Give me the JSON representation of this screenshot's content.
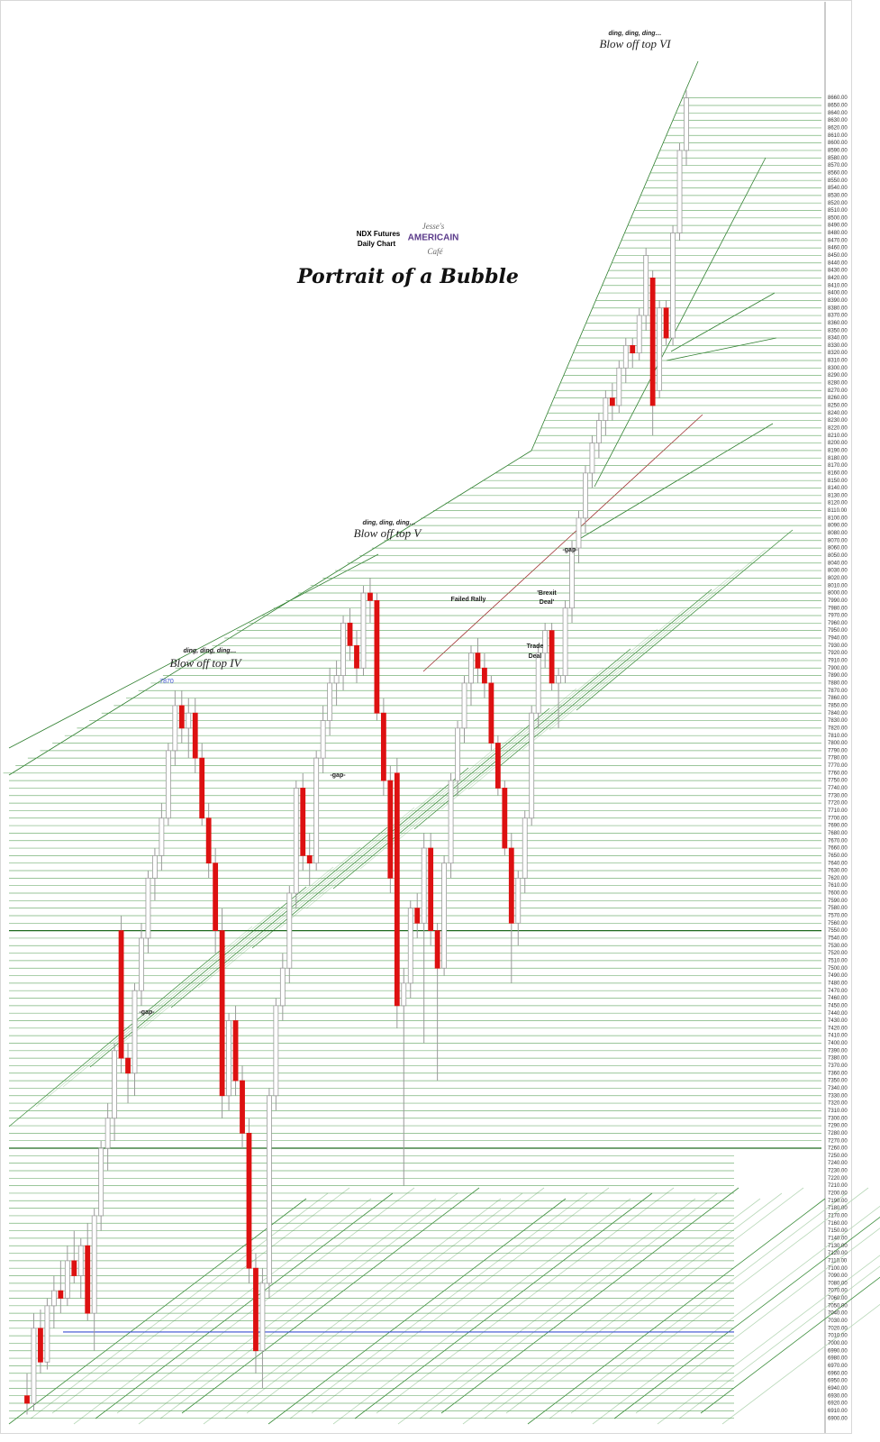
{
  "chart_data": {
    "type": "candlestick",
    "title": "Portrait of a Bubble",
    "subtitle": [
      "NDX  Futures",
      "Daily Chart"
    ],
    "logo": [
      "Jesse's",
      "AMERICAIN",
      "Café"
    ],
    "annotations": [
      {
        "text": "ding,  ding,  ding…"
      },
      {
        "text": "Blow off top IV"
      },
      {
        "text": "ding,  ding,  ding…"
      },
      {
        "text": "Blow off top V"
      },
      {
        "text": "ding,  ding,  ding…"
      },
      {
        "text": "Blow off top VI"
      },
      {
        "text": "-gap-"
      },
      {
        "text": "-gap-"
      },
      {
        "text": "-gap-"
      },
      {
        "text": "Failed Rally"
      },
      {
        "text": "'Brexit"
      },
      {
        "text": "Deal'"
      },
      {
        "text": "Trade"
      },
      {
        "text": "Deal"
      },
      {
        "text": "7870"
      }
    ],
    "open": [
      6930,
      6920,
      7020,
      6975,
      7050,
      7070,
      7060,
      7110,
      7090,
      7130,
      7040,
      7170,
      7260,
      7300,
      7550,
      7380,
      7360,
      7470,
      7540,
      7620,
      7650,
      7700,
      7790,
      7850,
      7820,
      7840,
      7780,
      7700,
      7640,
      7550,
      7330,
      7430,
      7350,
      7280,
      7100,
      6990,
      7080,
      7330,
      7450,
      7500,
      7600,
      7740,
      7650,
      7640,
      7780,
      7830,
      7880,
      7890,
      7960,
      7930,
      7900,
      8000,
      7990,
      7840,
      7750,
      7760,
      7450,
      7480,
      7580,
      7560,
      7660,
      7550,
      7500,
      7640,
      7750,
      7820,
      7880,
      7920,
      7900,
      7880,
      7800,
      7740,
      7660,
      7560,
      7620,
      7700,
      7840,
      7920,
      7950,
      7880,
      7890,
      7980,
      8060,
      8100,
      8160,
      8200,
      8230,
      8260,
      8250,
      8300,
      8330,
      8320,
      8370,
      8420,
      8270,
      8380,
      8340,
      8480,
      8590
    ],
    "high": [
      6960,
      7040,
      7045,
      7060,
      7090,
      7110,
      7130,
      7150,
      7140,
      7160,
      7180,
      7270,
      7320,
      7400,
      7570,
      7400,
      7480,
      7560,
      7630,
      7660,
      7720,
      7800,
      7870,
      7870,
      7860,
      7860,
      7800,
      7720,
      7660,
      7580,
      7440,
      7450,
      7370,
      7300,
      7120,
      7100,
      7340,
      7460,
      7520,
      7610,
      7750,
      7760,
      7680,
      7790,
      7850,
      7900,
      7910,
      7970,
      7980,
      7950,
      8010,
      8020,
      8000,
      7860,
      7770,
      7780,
      7500,
      7590,
      7600,
      7680,
      7680,
      7560,
      7650,
      7760,
      7830,
      7890,
      7930,
      7940,
      7920,
      7890,
      7810,
      7750,
      7680,
      7630,
      7710,
      7850,
      7930,
      7960,
      7960,
      7900,
      7990,
      8070,
      8110,
      8170,
      8210,
      8240,
      8270,
      8280,
      8310,
      8340,
      8340,
      8380,
      8460,
      8430,
      8390,
      8390,
      8490,
      8600,
      8670
    ],
    "low": [
      6905,
      6910,
      6960,
      6965,
      7020,
      7040,
      7050,
      7080,
      7060,
      7030,
      6990,
      7150,
      7230,
      7270,
      7360,
      7320,
      7330,
      7450,
      7520,
      7590,
      7630,
      7690,
      7770,
      7800,
      7780,
      7760,
      7690,
      7620,
      7520,
      7300,
      7310,
      7330,
      7260,
      7080,
      6960,
      6940,
      7060,
      7310,
      7430,
      7480,
      7580,
      7630,
      7610,
      7630,
      7760,
      7810,
      7850,
      7870,
      7910,
      7880,
      7890,
      7960,
      7830,
      7730,
      7600,
      7420,
      7210,
      7460,
      7540,
      7400,
      7530,
      7350,
      7490,
      7620,
      7730,
      7800,
      7850,
      7880,
      7860,
      7790,
      7730,
      7650,
      7480,
      7530,
      7600,
      7690,
      7820,
      7900,
      7870,
      7820,
      7880,
      7960,
      8040,
      8080,
      8140,
      8180,
      8210,
      8230,
      8240,
      8280,
      8300,
      8310,
      8350,
      8210,
      8260,
      8330,
      8330,
      8470,
      8570
    ],
    "close": [
      6920,
      7020,
      6975,
      7050,
      7070,
      7060,
      7110,
      7090,
      7130,
      7040,
      7170,
      7260,
      7300,
      7390,
      7380,
      7360,
      7470,
      7540,
      7620,
      7650,
      7700,
      7790,
      7850,
      7820,
      7840,
      7780,
      7700,
      7640,
      7550,
      7330,
      7430,
      7350,
      7280,
      7100,
      6990,
      7080,
      7330,
      7450,
      7500,
      7600,
      7740,
      7650,
      7640,
      7780,
      7830,
      7880,
      7890,
      7960,
      7930,
      7900,
      8000,
      7990,
      7840,
      7750,
      7620,
      7450,
      7480,
      7580,
      7560,
      7660,
      7550,
      7500,
      7640,
      7750,
      7820,
      7880,
      7920,
      7900,
      7880,
      7800,
      7740,
      7660,
      7560,
      7620,
      7700,
      7840,
      7920,
      7950,
      7880,
      7890,
      7980,
      8060,
      8100,
      8160,
      8200,
      8230,
      8260,
      8250,
      8300,
      8330,
      8320,
      8370,
      8450,
      8250,
      8380,
      8340,
      8480,
      8590,
      8660
    ],
    "up_color": "#ffffff",
    "down_color": "#dd1111",
    "wick_color": "#9a9a9a",
    "grid": true,
    "grid_color": "#4c9a4c",
    "hlines": [
      {
        "value": 7550,
        "color": "#1f6b1f"
      },
      {
        "value": 7260,
        "color": "#1f6b1f"
      },
      {
        "value": 7015,
        "color": "#3a4fd0"
      }
    ],
    "ylim": [
      6890,
      8680
    ],
    "yticks": [
      {
        "value": 6900,
        "label": "6900.00"
      },
      {
        "value": 6910,
        "label": "6910.00"
      },
      {
        "value": 6920,
        "label": "6920.00"
      },
      {
        "value": 6930,
        "label": "6930.00"
      },
      {
        "value": 6940,
        "label": "6940.00"
      },
      {
        "value": 6950,
        "label": "6950.00"
      },
      {
        "value": 6960,
        "label": "6960.00"
      },
      {
        "value": 6970,
        "label": "6970.00"
      },
      {
        "value": 6980,
        "label": "6980.00"
      },
      {
        "value": 6990,
        "label": "6990.00"
      },
      {
        "value": 7000,
        "label": "7000.00"
      },
      {
        "value": 7010,
        "label": "7010.00"
      },
      {
        "value": 7020,
        "label": "7020.00"
      },
      {
        "value": 7030,
        "label": "7030.00"
      },
      {
        "value": 7040,
        "label": "7040.00"
      },
      {
        "value": 7050,
        "label": "7050.00"
      },
      {
        "value": 7060,
        "label": "7060.00"
      },
      {
        "value": 7070,
        "label": "7070.00"
      },
      {
        "value": 7080,
        "label": "7080.00"
      },
      {
        "value": 7090,
        "label": "7090.00"
      },
      {
        "value": 7100,
        "label": "7100.00"
      },
      {
        "value": 7110,
        "label": "7110.00"
      },
      {
        "value": 7120,
        "label": "7120.00"
      },
      {
        "value": 7130,
        "label": "7130.00"
      },
      {
        "value": 7140,
        "label": "7140.00"
      },
      {
        "value": 7150,
        "label": "7150.00"
      },
      {
        "value": 7160,
        "label": "7160.00"
      },
      {
        "value": 7170,
        "label": "7170.00"
      },
      {
        "value": 7180,
        "label": "7180.00"
      },
      {
        "value": 7190,
        "label": "7190.00"
      },
      {
        "value": 7200,
        "label": "7200.00"
      },
      {
        "value": 7210,
        "label": "7210.00"
      },
      {
        "value": 7220,
        "label": "7220.00"
      },
      {
        "value": 7230,
        "label": "7230.00"
      },
      {
        "value": 7240,
        "label": "7240.00"
      },
      {
        "value": 7250,
        "label": "7250.00"
      },
      {
        "value": 7260,
        "label": "7260.00"
      },
      {
        "value": 7270,
        "label": "7270.00"
      },
      {
        "value": 7280,
        "label": "7280.00"
      },
      {
        "value": 7290,
        "label": "7290.00"
      },
      {
        "value": 7300,
        "label": "7300.00"
      },
      {
        "value": 7310,
        "label": "7310.00"
      },
      {
        "value": 7320,
        "label": "7320.00"
      },
      {
        "value": 7330,
        "label": "7330.00"
      },
      {
        "value": 7340,
        "label": "7340.00"
      },
      {
        "value": 7350,
        "label": "7350.00"
      },
      {
        "value": 7360,
        "label": "7360.00"
      },
      {
        "value": 7370,
        "label": "7370.00"
      },
      {
        "value": 7380,
        "label": "7380.00"
      },
      {
        "value": 7390,
        "label": "7390.00"
      },
      {
        "value": 7400,
        "label": "7400.00"
      },
      {
        "value": 7410,
        "label": "7410.00"
      },
      {
        "value": 7420,
        "label": "7420.00"
      },
      {
        "value": 7430,
        "label": "7430.00"
      },
      {
        "value": 7440,
        "label": "7440.00"
      },
      {
        "value": 7450,
        "label": "7450.00"
      },
      {
        "value": 7460,
        "label": "7460.00"
      },
      {
        "value": 7470,
        "label": "7470.00"
      },
      {
        "value": 7480,
        "label": "7480.00"
      },
      {
        "value": 7490,
        "label": "7490.00"
      },
      {
        "value": 7500,
        "label": "7500.00"
      },
      {
        "value": 7510,
        "label": "7510.00"
      },
      {
        "value": 7520,
        "label": "7520.00"
      },
      {
        "value": 7530,
        "label": "7530.00"
      },
      {
        "value": 7540,
        "label": "7540.00"
      },
      {
        "value": 7550,
        "label": "7550.00"
      },
      {
        "value": 7560,
        "label": "7560.00"
      },
      {
        "value": 7570,
        "label": "7570.00"
      },
      {
        "value": 7580,
        "label": "7580.00"
      },
      {
        "value": 7590,
        "label": "7590.00"
      },
      {
        "value": 7600,
        "label": "7600.00"
      },
      {
        "value": 7610,
        "label": "7610.00"
      },
      {
        "value": 7620,
        "label": "7620.00"
      },
      {
        "value": 7630,
        "label": "7630.00"
      },
      {
        "value": 7640,
        "label": "7640.00"
      },
      {
        "value": 7650,
        "label": "7650.00"
      },
      {
        "value": 7660,
        "label": "7660.00"
      },
      {
        "value": 7670,
        "label": "7670.00"
      },
      {
        "value": 7680,
        "label": "7680.00"
      },
      {
        "value": 7690,
        "label": "7690.00"
      },
      {
        "value": 7700,
        "label": "7700.00"
      },
      {
        "value": 7710,
        "label": "7710.00"
      },
      {
        "value": 7720,
        "label": "7720.00"
      },
      {
        "value": 7730,
        "label": "7730.00"
      },
      {
        "value": 7740,
        "label": "7740.00"
      },
      {
        "value": 7750,
        "label": "7750.00"
      },
      {
        "value": 7760,
        "label": "7760.00"
      },
      {
        "value": 7770,
        "label": "7770.00"
      },
      {
        "value": 7780,
        "label": "7780.00"
      },
      {
        "value": 7790,
        "label": "7790.00"
      },
      {
        "value": 7800,
        "label": "7800.00"
      },
      {
        "value": 7810,
        "label": "7810.00"
      },
      {
        "value": 7820,
        "label": "7820.00"
      },
      {
        "value": 7830,
        "label": "7830.00"
      },
      {
        "value": 7840,
        "label": "7840.00"
      },
      {
        "value": 7850,
        "label": "7850.00"
      },
      {
        "value": 7860,
        "label": "7860.00"
      },
      {
        "value": 7870,
        "label": "7870.00"
      },
      {
        "value": 7880,
        "label": "7880.00"
      },
      {
        "value": 7890,
        "label": "7890.00"
      },
      {
        "value": 7900,
        "label": "7900.00"
      },
      {
        "value": 7910,
        "label": "7910.00"
      },
      {
        "value": 7920,
        "label": "7920.00"
      },
      {
        "value": 7930,
        "label": "7930.00"
      },
      {
        "value": 7940,
        "label": "7940.00"
      },
      {
        "value": 7950,
        "label": "7950.00"
      },
      {
        "value": 7960,
        "label": "7960.00"
      },
      {
        "value": 7970,
        "label": "7970.00"
      },
      {
        "value": 7980,
        "label": "7980.00"
      },
      {
        "value": 7990,
        "label": "7990.00"
      },
      {
        "value": 8000,
        "label": "8000.00"
      },
      {
        "value": 8010,
        "label": "8010.00"
      },
      {
        "value": 8020,
        "label": "8020.00"
      },
      {
        "value": 8030,
        "label": "8030.00"
      },
      {
        "value": 8040,
        "label": "8040.00"
      },
      {
        "value": 8050,
        "label": "8050.00"
      },
      {
        "value": 8060,
        "label": "8060.00"
      },
      {
        "value": 8070,
        "label": "8070.00"
      },
      {
        "value": 8080,
        "label": "8080.00"
      },
      {
        "value": 8090,
        "label": "8090.00"
      },
      {
        "value": 8100,
        "label": "8100.00"
      },
      {
        "value": 8110,
        "label": "8110.00"
      },
      {
        "value": 8120,
        "label": "8120.00"
      },
      {
        "value": 8130,
        "label": "8130.00"
      },
      {
        "value": 8140,
        "label": "8140.00"
      },
      {
        "value": 8150,
        "label": "8150.00"
      },
      {
        "value": 8160,
        "label": "8160.00"
      },
      {
        "value": 8170,
        "label": "8170.00"
      },
      {
        "value": 8180,
        "label": "8180.00"
      },
      {
        "value": 8190,
        "label": "8190.00"
      },
      {
        "value": 8200,
        "label": "8200.00"
      },
      {
        "value": 8210,
        "label": "8210.00"
      },
      {
        "value": 8220,
        "label": "8220.00"
      },
      {
        "value": 8230,
        "label": "8230.00"
      },
      {
        "value": 8240,
        "label": "8240.00"
      },
      {
        "value": 8250,
        "label": "8250.00"
      },
      {
        "value": 8260,
        "label": "8260.00"
      },
      {
        "value": 8270,
        "label": "8270.00"
      },
      {
        "value": 8280,
        "label": "8280.00"
      },
      {
        "value": 8290,
        "label": "8290.00"
      },
      {
        "value": 8300,
        "label": "8300.00"
      },
      {
        "value": 8310,
        "label": "8310.00"
      },
      {
        "value": 8320,
        "label": "8320.00"
      },
      {
        "value": 8330,
        "label": "8330.00"
      },
      {
        "value": 8340,
        "label": "8340.00"
      },
      {
        "value": 8350,
        "label": "8350.00"
      },
      {
        "value": 8360,
        "label": "8360.00"
      },
      {
        "value": 8370,
        "label": "8370.00"
      },
      {
        "value": 8380,
        "label": "8380.00"
      },
      {
        "value": 8390,
        "label": "8390.00"
      },
      {
        "value": 8400,
        "label": "8400.00"
      },
      {
        "value": 8410,
        "label": "8410.00"
      },
      {
        "value": 8420,
        "label": "8420.00"
      },
      {
        "value": 8430,
        "label": "8430.00"
      },
      {
        "value": 8440,
        "label": "8440.00"
      },
      {
        "value": 8450,
        "label": "8450.00"
      },
      {
        "value": 8460,
        "label": "8460.00"
      },
      {
        "value": 8470,
        "label": "8470.00"
      },
      {
        "value": 8480,
        "label": "8480.00"
      },
      {
        "value": 8490,
        "label": "8490.00"
      },
      {
        "value": 8500,
        "label": "8500.00"
      },
      {
        "value": 8510,
        "label": "8510.00"
      },
      {
        "value": 8520,
        "label": "8520.00"
      },
      {
        "value": 8530,
        "label": "8530.00"
      },
      {
        "value": 8540,
        "label": "8540.00"
      },
      {
        "value": 8550,
        "label": "8550.00"
      },
      {
        "value": 8560,
        "label": "8560.00"
      },
      {
        "value": 8570,
        "label": "8570.00"
      },
      {
        "value": 8580,
        "label": "8580.00"
      },
      {
        "value": 8590,
        "label": "8590.00"
      },
      {
        "value": 8600,
        "label": "8600.00"
      },
      {
        "value": 8610,
        "label": "8610.00"
      },
      {
        "value": 8620,
        "label": "8620.00"
      },
      {
        "value": 8630,
        "label": "8630.00"
      },
      {
        "value": 8640,
        "label": "8640.00"
      },
      {
        "value": 8650,
        "label": "8650.00"
      },
      {
        "value": 8660,
        "label": "8660.00"
      }
    ]
  }
}
